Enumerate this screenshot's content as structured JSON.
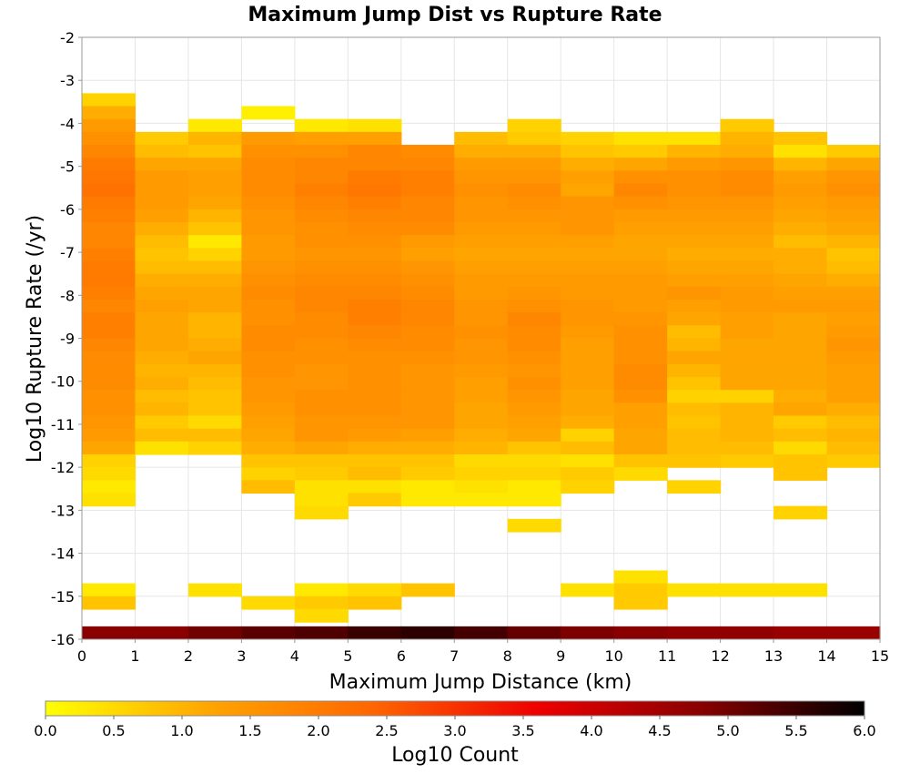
{
  "chart_data": {
    "type": "heatmap",
    "title": "Maximum Jump Dist vs Rupture Rate",
    "xlabel": "Maximum Jump Distance (km)",
    "ylabel": "Log10 Rupture Rate (/yr)",
    "xlim": [
      0,
      15
    ],
    "ylim": [
      -16,
      -2
    ],
    "x_ticks": [
      0,
      1,
      2,
      3,
      4,
      5,
      6,
      7,
      8,
      9,
      10,
      11,
      12,
      13,
      14,
      15
    ],
    "y_ticks": [
      -2,
      -3,
      -4,
      -5,
      -6,
      -7,
      -8,
      -9,
      -10,
      -11,
      -12,
      -13,
      -14,
      -15,
      -16
    ],
    "grid": true,
    "x_bin_width": 1,
    "y_bin_height": 0.3,
    "colorbar": {
      "label": "Log10 Count",
      "range": [
        0,
        6
      ],
      "ticks": [
        "0.0",
        "0.5",
        "1.0",
        "1.5",
        "2.0",
        "2.5",
        "3.0",
        "3.5",
        "4.0",
        "4.5",
        "5.0",
        "5.5",
        "6.0"
      ],
      "colors": [
        "#ffff00",
        "#ffa500",
        "#ff6600",
        "#ee0000",
        "#880000",
        "#000000"
      ]
    },
    "values_note": "rows are y-bins of height 0.3 in Log10 Rupture Rate; row y value is bin bottom; null = no count",
    "rows": [
      {
        "y": -3.6,
        "values": [
          0.6,
          null,
          null,
          null,
          null,
          null,
          null,
          null,
          null,
          null,
          null,
          null,
          null,
          null,
          null
        ]
      },
      {
        "y": -3.9,
        "values": [
          1.1,
          null,
          null,
          0.2,
          null,
          null,
          null,
          null,
          null,
          null,
          null,
          null,
          null,
          null,
          null
        ]
      },
      {
        "y": -4.2,
        "values": [
          1.4,
          null,
          0.3,
          null,
          0.3,
          0.4,
          null,
          null,
          0.6,
          null,
          null,
          null,
          0.7,
          null,
          null
        ]
      },
      {
        "y": -4.5,
        "values": [
          1.6,
          0.7,
          1.0,
          1.4,
          1.3,
          1.3,
          null,
          0.9,
          0.7,
          0.6,
          0.4,
          0.4,
          1.0,
          0.8,
          null
        ]
      },
      {
        "y": -4.8,
        "values": [
          1.8,
          0.9,
          0.8,
          1.6,
          1.6,
          1.8,
          1.7,
          1.1,
          1.1,
          0.8,
          0.7,
          1.0,
          1.1,
          0.4,
          0.7
        ]
      },
      {
        "y": -5.1,
        "values": [
          2.0,
          1.2,
          1.2,
          1.7,
          1.8,
          1.8,
          1.8,
          1.4,
          1.4,
          1.1,
          1.2,
          1.4,
          1.5,
          1.0,
          1.2
        ]
      },
      {
        "y": -5.4,
        "values": [
          2.1,
          1.4,
          1.3,
          1.7,
          1.8,
          2.0,
          1.9,
          1.5,
          1.5,
          1.3,
          1.6,
          1.6,
          1.7,
          1.3,
          1.5
        ]
      },
      {
        "y": -5.7,
        "values": [
          2.2,
          1.4,
          1.3,
          1.7,
          1.9,
          2.1,
          1.9,
          1.6,
          1.7,
          1.2,
          1.8,
          1.6,
          1.7,
          1.4,
          1.6
        ]
      },
      {
        "y": -6.0,
        "values": [
          2.0,
          1.4,
          1.2,
          1.6,
          1.8,
          1.9,
          1.8,
          1.5,
          1.6,
          1.5,
          1.6,
          1.5,
          1.5,
          1.3,
          1.4
        ]
      },
      {
        "y": -6.3,
        "values": [
          1.9,
          1.3,
          1.0,
          1.5,
          1.7,
          1.8,
          1.8,
          1.5,
          1.5,
          1.5,
          1.4,
          1.4,
          1.4,
          1.2,
          1.3
        ]
      },
      {
        "y": -6.6,
        "values": [
          1.8,
          1.1,
          0.8,
          1.5,
          1.6,
          1.7,
          1.7,
          1.4,
          1.4,
          1.5,
          1.3,
          1.3,
          1.3,
          1.1,
          1.2
        ]
      },
      {
        "y": -6.9,
        "values": [
          1.8,
          0.9,
          0.3,
          1.4,
          1.6,
          1.6,
          1.4,
          1.3,
          1.3,
          1.3,
          1.2,
          1.2,
          1.2,
          0.9,
          1.0
        ]
      },
      {
        "y": -7.2,
        "values": [
          1.9,
          0.8,
          0.6,
          1.4,
          1.5,
          1.5,
          1.3,
          1.2,
          1.2,
          1.2,
          1.2,
          1.1,
          1.1,
          1.1,
          0.8
        ]
      },
      {
        "y": -7.5,
        "values": [
          2.0,
          0.9,
          0.9,
          1.5,
          1.6,
          1.6,
          1.5,
          1.3,
          1.3,
          1.3,
          1.3,
          1.2,
          1.2,
          1.1,
          0.9
        ]
      },
      {
        "y": -7.8,
        "values": [
          2.0,
          1.1,
          1.1,
          1.6,
          1.7,
          1.7,
          1.6,
          1.4,
          1.4,
          1.4,
          1.4,
          1.3,
          1.3,
          1.2,
          1.1
        ]
      },
      {
        "y": -8.1,
        "values": [
          1.9,
          1.2,
          1.2,
          1.7,
          1.8,
          1.8,
          1.7,
          1.4,
          1.5,
          1.4,
          1.4,
          1.5,
          1.4,
          1.3,
          1.3
        ]
      },
      {
        "y": -8.4,
        "values": [
          1.8,
          1.3,
          1.2,
          1.6,
          1.8,
          1.9,
          1.8,
          1.5,
          1.6,
          1.5,
          1.4,
          1.3,
          1.4,
          1.4,
          1.4
        ]
      },
      {
        "y": -8.7,
        "values": [
          1.9,
          1.2,
          1.0,
          1.6,
          1.7,
          1.9,
          1.8,
          1.5,
          1.8,
          1.5,
          1.5,
          1.2,
          1.3,
          1.2,
          1.3
        ]
      },
      {
        "y": -9.0,
        "values": [
          1.9,
          1.2,
          1.0,
          1.7,
          1.7,
          1.8,
          1.7,
          1.6,
          1.7,
          1.4,
          1.6,
          0.9,
          1.3,
          1.2,
          1.4
        ]
      },
      {
        "y": -9.3,
        "values": [
          1.8,
          1.2,
          1.1,
          1.7,
          1.6,
          1.7,
          1.7,
          1.5,
          1.7,
          1.3,
          1.6,
          1.0,
          1.2,
          1.2,
          1.5
        ]
      },
      {
        "y": -9.6,
        "values": [
          1.7,
          1.1,
          1.2,
          1.6,
          1.6,
          1.6,
          1.6,
          1.5,
          1.6,
          1.3,
          1.6,
          1.2,
          1.2,
          1.2,
          1.4
        ]
      },
      {
        "y": -9.9,
        "values": [
          1.7,
          1.0,
          1.0,
          1.6,
          1.5,
          1.6,
          1.5,
          1.4,
          1.5,
          1.3,
          1.7,
          1.0,
          1.2,
          1.2,
          1.3
        ]
      },
      {
        "y": -10.2,
        "values": [
          1.7,
          1.1,
          0.9,
          1.5,
          1.5,
          1.6,
          1.5,
          1.3,
          1.6,
          1.3,
          1.7,
          0.8,
          1.2,
          1.2,
          1.3
        ]
      },
      {
        "y": -10.5,
        "values": [
          1.6,
          0.9,
          0.8,
          1.5,
          1.6,
          1.6,
          1.5,
          1.3,
          1.5,
          1.2,
          1.6,
          0.6,
          0.6,
          1.1,
          1.3
        ]
      },
      {
        "y": -10.8,
        "values": [
          1.6,
          1.0,
          0.8,
          1.4,
          1.6,
          1.6,
          1.5,
          1.2,
          1.4,
          1.2,
          1.3,
          0.9,
          1.0,
          1.2,
          1.1
        ]
      },
      {
        "y": -11.1,
        "values": [
          1.5,
          0.7,
          0.5,
          1.3,
          1.5,
          1.5,
          1.5,
          1.2,
          1.3,
          1.1,
          1.3,
          0.8,
          1.0,
          0.7,
          0.9
        ]
      },
      {
        "y": -11.4,
        "values": [
          1.4,
          0.9,
          0.9,
          1.2,
          1.5,
          1.4,
          1.3,
          1.1,
          1.2,
          0.6,
          1.2,
          0.9,
          1.0,
          0.9,
          1.0
        ]
      },
      {
        "y": -11.7,
        "values": [
          1.2,
          0.4,
          0.6,
          1.1,
          1.2,
          1.1,
          1.1,
          1.0,
          0.8,
          0.9,
          1.2,
          0.9,
          0.9,
          0.5,
          0.9
        ]
      },
      {
        "y": -12.0,
        "values": [
          0.6,
          null,
          null,
          0.8,
          0.8,
          0.8,
          0.8,
          0.5,
          0.5,
          0.4,
          0.8,
          0.8,
          0.7,
          0.8,
          0.7
        ]
      },
      {
        "y": -12.3,
        "values": [
          0.5,
          null,
          null,
          0.6,
          0.7,
          0.9,
          0.7,
          0.6,
          0.6,
          0.7,
          0.5,
          null,
          null,
          0.8,
          null
        ]
      },
      {
        "y": -12.6,
        "values": [
          0.3,
          null,
          null,
          0.9,
          0.4,
          0.4,
          0.3,
          0.4,
          0.3,
          0.6,
          null,
          0.6,
          null,
          null,
          null
        ]
      },
      {
        "y": -12.9,
        "values": [
          0.4,
          null,
          null,
          null,
          0.4,
          0.7,
          0.3,
          0.3,
          0.3,
          null,
          null,
          null,
          null,
          null,
          null
        ]
      },
      {
        "y": -13.2,
        "values": [
          null,
          null,
          null,
          null,
          0.5,
          null,
          null,
          null,
          null,
          null,
          null,
          null,
          null,
          0.6,
          null
        ]
      },
      {
        "y": -13.5,
        "values": [
          null,
          null,
          null,
          null,
          null,
          null,
          null,
          null,
          0.5,
          null,
          null,
          null,
          null,
          null,
          null
        ]
      },
      {
        "y": -14.7,
        "values": [
          null,
          null,
          null,
          null,
          null,
          null,
          null,
          null,
          null,
          null,
          0.4,
          null,
          null,
          null,
          null
        ]
      },
      {
        "y": -15.0,
        "values": [
          0.3,
          null,
          0.4,
          null,
          0.3,
          0.5,
          0.8,
          null,
          null,
          0.4,
          0.7,
          0.4,
          0.4,
          0.4,
          null
        ]
      },
      {
        "y": -15.3,
        "values": [
          0.8,
          null,
          null,
          0.5,
          0.7,
          0.8,
          null,
          null,
          null,
          null,
          0.7,
          null,
          null,
          null,
          null
        ]
      },
      {
        "y": -15.6,
        "values": [
          null,
          null,
          null,
          null,
          0.5,
          null,
          null,
          null,
          null,
          null,
          null,
          null,
          null,
          null,
          null
        ]
      }
    ],
    "bottom_band": {
      "y": -15.85,
      "values": [
        4.8,
        4.8,
        5.0,
        5.2,
        5.3,
        5.5,
        5.6,
        5.4,
        5.1,
        4.9,
        4.8,
        4.7,
        4.7,
        4.6,
        4.6
      ]
    }
  }
}
